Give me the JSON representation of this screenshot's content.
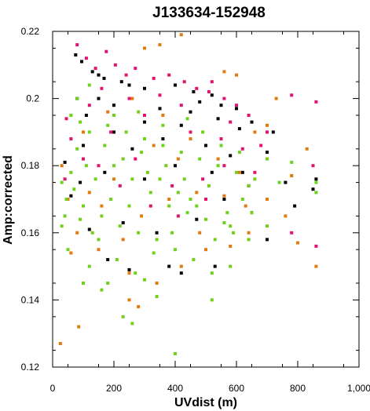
{
  "chart_data": {
    "type": "scatter",
    "title": "J133634-152948",
    "xlabel": "UVdist (m)",
    "ylabel": "Amp:corrected",
    "xlim": [
      0,
      1000
    ],
    "ylim": [
      0.12,
      0.22
    ],
    "x_ticks": [
      "0",
      "200",
      "400",
      "600",
      "800",
      "1,000"
    ],
    "y_ticks": [
      "0.12",
      "0.14",
      "0.16",
      "0.18",
      "0.2",
      "0.22"
    ],
    "x_tick_values": [
      0,
      200,
      400,
      600,
      800,
      1000
    ],
    "y_tick_values": [
      0.12,
      0.14,
      0.16,
      0.18,
      0.2,
      0.22
    ],
    "grid": false,
    "legend": "none",
    "series": [
      {
        "color": "#000000",
        "points": [
          [
            75,
            0.213
          ],
          [
            95,
            0.211
          ],
          [
            130,
            0.208
          ],
          [
            150,
            0.207
          ],
          [
            168,
            0.206
          ],
          [
            225,
            0.205
          ],
          [
            250,
            0.204
          ],
          [
            300,
            0.203
          ],
          [
            400,
            0.204
          ],
          [
            460,
            0.202
          ],
          [
            520,
            0.201
          ],
          [
            480,
            0.199
          ],
          [
            550,
            0.198
          ],
          [
            600,
            0.197
          ],
          [
            650,
            0.193
          ],
          [
            700,
            0.184
          ],
          [
            720,
            0.19
          ],
          [
            860,
            0.176
          ],
          [
            850,
            0.173
          ],
          [
            760,
            0.175
          ],
          [
            790,
            0.168
          ],
          [
            650,
            0.166
          ],
          [
            700,
            0.158
          ],
          [
            530,
            0.15
          ],
          [
            420,
            0.148
          ],
          [
            380,
            0.15
          ],
          [
            250,
            0.149
          ],
          [
            180,
            0.152
          ],
          [
            120,
            0.161
          ],
          [
            60,
            0.171
          ],
          [
            40,
            0.181
          ],
          [
            100,
            0.186
          ],
          [
            200,
            0.19
          ],
          [
            300,
            0.193
          ],
          [
            350,
            0.197
          ],
          [
            150,
            0.2
          ],
          [
            420,
            0.192
          ],
          [
            500,
            0.186
          ],
          [
            580,
            0.183
          ],
          [
            620,
            0.178
          ],
          [
            560,
            0.17
          ],
          [
            470,
            0.164
          ],
          [
            340,
            0.16
          ],
          [
            230,
            0.163
          ],
          [
            90,
            0.175
          ],
          [
            300,
            0.176
          ],
          [
            400,
            0.18
          ],
          [
            520,
            0.178
          ],
          [
            640,
            0.174
          ],
          [
            260,
            0.185
          ],
          [
            170,
            0.178
          ],
          [
            450,
            0.196
          ],
          [
            610,
            0.191
          ],
          [
            540,
            0.194
          ],
          [
            360,
            0.188
          ],
          [
            110,
            0.195
          ],
          [
            80,
            0.2
          ],
          [
            200,
            0.198
          ]
        ]
      },
      {
        "color": "#e0146e",
        "points": [
          [
            80,
            0.216
          ],
          [
            110,
            0.212
          ],
          [
            140,
            0.209
          ],
          [
            175,
            0.214
          ],
          [
            205,
            0.21
          ],
          [
            270,
            0.209
          ],
          [
            330,
            0.206
          ],
          [
            380,
            0.207
          ],
          [
            430,
            0.205
          ],
          [
            470,
            0.203
          ],
          [
            510,
            0.202
          ],
          [
            560,
            0.2
          ],
          [
            600,
            0.198
          ],
          [
            640,
            0.195
          ],
          [
            700,
            0.19
          ],
          [
            780,
            0.201
          ],
          [
            860,
            0.199
          ],
          [
            850,
            0.18
          ],
          [
            780,
            0.16
          ],
          [
            860,
            0.156
          ],
          [
            560,
            0.18
          ],
          [
            500,
            0.17
          ],
          [
            410,
            0.165
          ],
          [
            320,
            0.168
          ],
          [
            220,
            0.174
          ],
          [
            150,
            0.18
          ],
          [
            60,
            0.188
          ],
          [
            45,
            0.194
          ],
          [
            120,
            0.198
          ],
          [
            250,
            0.2
          ],
          [
            350,
            0.201
          ],
          [
            450,
            0.19
          ],
          [
            550,
            0.188
          ],
          [
            620,
            0.185
          ],
          [
            660,
            0.178
          ],
          [
            490,
            0.176
          ],
          [
            390,
            0.174
          ],
          [
            270,
            0.182
          ],
          [
            190,
            0.19
          ],
          [
            100,
            0.182
          ],
          [
            300,
            0.195
          ],
          [
            420,
            0.198
          ],
          [
            580,
            0.193
          ],
          [
            680,
            0.186
          ],
          [
            40,
            0.176
          ],
          [
            520,
            0.205
          ],
          [
            240,
            0.207
          ],
          [
            160,
            0.203
          ]
        ]
      },
      {
        "color": "#e37a0e",
        "points": [
          [
            25,
            0.127
          ],
          [
            85,
            0.132
          ],
          [
            250,
            0.14
          ],
          [
            280,
            0.138
          ],
          [
            350,
            0.216
          ],
          [
            420,
            0.219
          ],
          [
            300,
            0.215
          ],
          [
            560,
            0.208
          ],
          [
            600,
            0.207
          ],
          [
            730,
            0.2
          ],
          [
            830,
            0.185
          ],
          [
            860,
            0.15
          ],
          [
            800,
            0.157
          ],
          [
            760,
            0.165
          ],
          [
            700,
            0.17
          ],
          [
            640,
            0.16
          ],
          [
            580,
            0.156
          ],
          [
            500,
            0.155
          ],
          [
            420,
            0.15
          ],
          [
            340,
            0.145
          ],
          [
            250,
            0.148
          ],
          [
            150,
            0.155
          ],
          [
            80,
            0.16
          ],
          [
            50,
            0.17
          ],
          [
            30,
            0.18
          ],
          [
            100,
            0.19
          ],
          [
            180,
            0.196
          ],
          [
            260,
            0.2
          ],
          [
            360,
            0.195
          ],
          [
            450,
            0.188
          ],
          [
            540,
            0.182
          ],
          [
            610,
            0.178
          ],
          [
            660,
            0.19
          ],
          [
            700,
            0.192
          ],
          [
            470,
            0.172
          ],
          [
            380,
            0.17
          ],
          [
            290,
            0.165
          ],
          [
            200,
            0.176
          ],
          [
            120,
            0.172
          ],
          [
            330,
            0.186
          ],
          [
            410,
            0.182
          ],
          [
            560,
            0.171
          ],
          [
            630,
            0.168
          ],
          [
            230,
            0.158
          ],
          [
            160,
            0.168
          ],
          [
            60,
            0.154
          ],
          [
            480,
            0.16
          ],
          [
            780,
            0.177
          ]
        ]
      },
      {
        "color": "#6fd11a",
        "points": [
          [
            260,
            0.133
          ],
          [
            400,
            0.124
          ],
          [
            230,
            0.135
          ],
          [
            340,
            0.141
          ],
          [
            160,
            0.143
          ],
          [
            100,
            0.145
          ],
          [
            50,
            0.155
          ],
          [
            30,
            0.162
          ],
          [
            45,
            0.17
          ],
          [
            60,
            0.178
          ],
          [
            80,
            0.185
          ],
          [
            120,
            0.19
          ],
          [
            180,
            0.192
          ],
          [
            240,
            0.19
          ],
          [
            300,
            0.188
          ],
          [
            360,
            0.186
          ],
          [
            420,
            0.184
          ],
          [
            480,
            0.182
          ],
          [
            540,
            0.18
          ],
          [
            600,
            0.178
          ],
          [
            640,
            0.174
          ],
          [
            700,
            0.182
          ],
          [
            740,
            0.175
          ],
          [
            860,
            0.175
          ],
          [
            860,
            0.172
          ],
          [
            700,
            0.162
          ],
          [
            640,
            0.158
          ],
          [
            580,
            0.15
          ],
          [
            520,
            0.148
          ],
          [
            460,
            0.152
          ],
          [
            400,
            0.155
          ],
          [
            340,
            0.158
          ],
          [
            280,
            0.16
          ],
          [
            220,
            0.162
          ],
          [
            160,
            0.165
          ],
          [
            100,
            0.168
          ],
          [
            70,
            0.173
          ],
          [
            140,
            0.176
          ],
          [
            200,
            0.18
          ],
          [
            260,
            0.176
          ],
          [
            320,
            0.172
          ],
          [
            380,
            0.168
          ],
          [
            440,
            0.166
          ],
          [
            500,
            0.164
          ],
          [
            560,
            0.163
          ],
          [
            620,
            0.17
          ],
          [
            150,
            0.158
          ],
          [
            210,
            0.152
          ],
          [
            270,
            0.148
          ],
          [
            330,
            0.154
          ],
          [
            390,
            0.16
          ],
          [
            450,
            0.17
          ],
          [
            510,
            0.174
          ],
          [
            570,
            0.166
          ],
          [
            90,
            0.164
          ],
          [
            130,
            0.16
          ],
          [
            190,
            0.17
          ],
          [
            250,
            0.168
          ],
          [
            310,
            0.178
          ],
          [
            370,
            0.18
          ],
          [
            430,
            0.176
          ],
          [
            490,
            0.19
          ],
          [
            550,
            0.186
          ],
          [
            610,
            0.184
          ],
          [
            40,
            0.165
          ],
          [
            110,
            0.18
          ],
          [
            170,
            0.186
          ],
          [
            230,
            0.182
          ],
          [
            290,
            0.184
          ],
          [
            350,
            0.176
          ],
          [
            410,
            0.172
          ],
          [
            470,
            0.168
          ],
          [
            530,
            0.158
          ],
          [
            590,
            0.16
          ],
          [
            650,
            0.166
          ],
          [
            200,
            0.195
          ],
          [
            280,
            0.196
          ],
          [
            360,
            0.192
          ],
          [
            440,
            0.194
          ],
          [
            80,
            0.2
          ],
          [
            120,
            0.204
          ],
          [
            60,
            0.195
          ],
          [
            180,
            0.145
          ],
          [
            120,
            0.15
          ],
          [
            300,
            0.146
          ],
          [
            520,
            0.14
          ],
          [
            580,
            0.162
          ],
          [
            660,
            0.176
          ],
          [
            780,
            0.181
          ],
          [
            30,
            0.175
          ],
          [
            90,
            0.193
          ]
        ]
      }
    ]
  }
}
